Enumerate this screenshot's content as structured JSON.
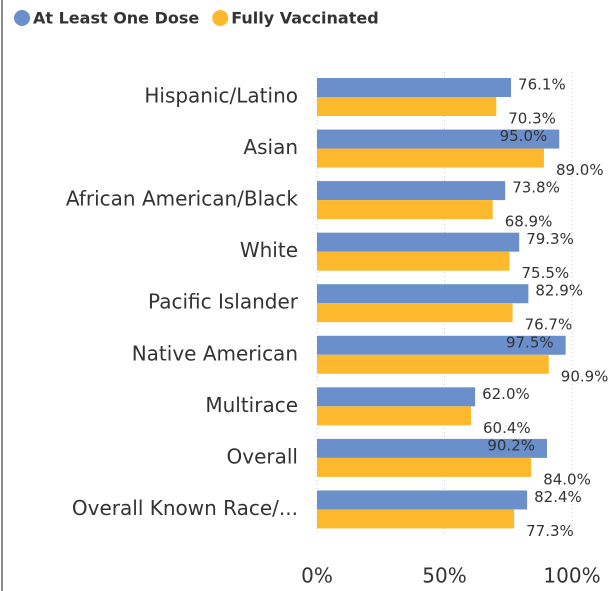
{
  "chart_data": {
    "type": "bar",
    "orientation": "horizontal",
    "categories": [
      "Hispanic/Latino",
      "Asian",
      "African American/Black",
      "White",
      "Pacific Islander",
      "Native American",
      "Multirace",
      "Overall",
      "Overall Known Race/..."
    ],
    "series": [
      {
        "name": "At Least One Dose",
        "color": "#6a8fcb",
        "values": [
          76.1,
          95.0,
          73.8,
          79.3,
          82.9,
          97.5,
          62.0,
          90.2,
          82.4
        ],
        "value_labels": [
          "76.1%",
          "95.0%",
          "73.8%",
          "79.3%",
          "82.9%",
          "97.5%",
          "62.0%",
          "90.2%",
          "82.4%"
        ]
      },
      {
        "name": "Fully Vaccinated",
        "color": "#fdb92e",
        "values": [
          70.3,
          89.0,
          68.9,
          75.5,
          76.7,
          90.9,
          60.4,
          84.0,
          77.3
        ],
        "value_labels": [
          "70.3%",
          "89.0%",
          "68.9%",
          "75.5%",
          "76.7%",
          "90.9%",
          "60.4%",
          "84.0%",
          "77.3%"
        ]
      }
    ],
    "xlim": [
      0,
      100
    ],
    "xticks": [
      {
        "value": 0,
        "label": "0%"
      },
      {
        "value": 50,
        "label": "50%"
      },
      {
        "value": 100,
        "label": "100%"
      }
    ],
    "grid": true,
    "legend": "top-left"
  }
}
